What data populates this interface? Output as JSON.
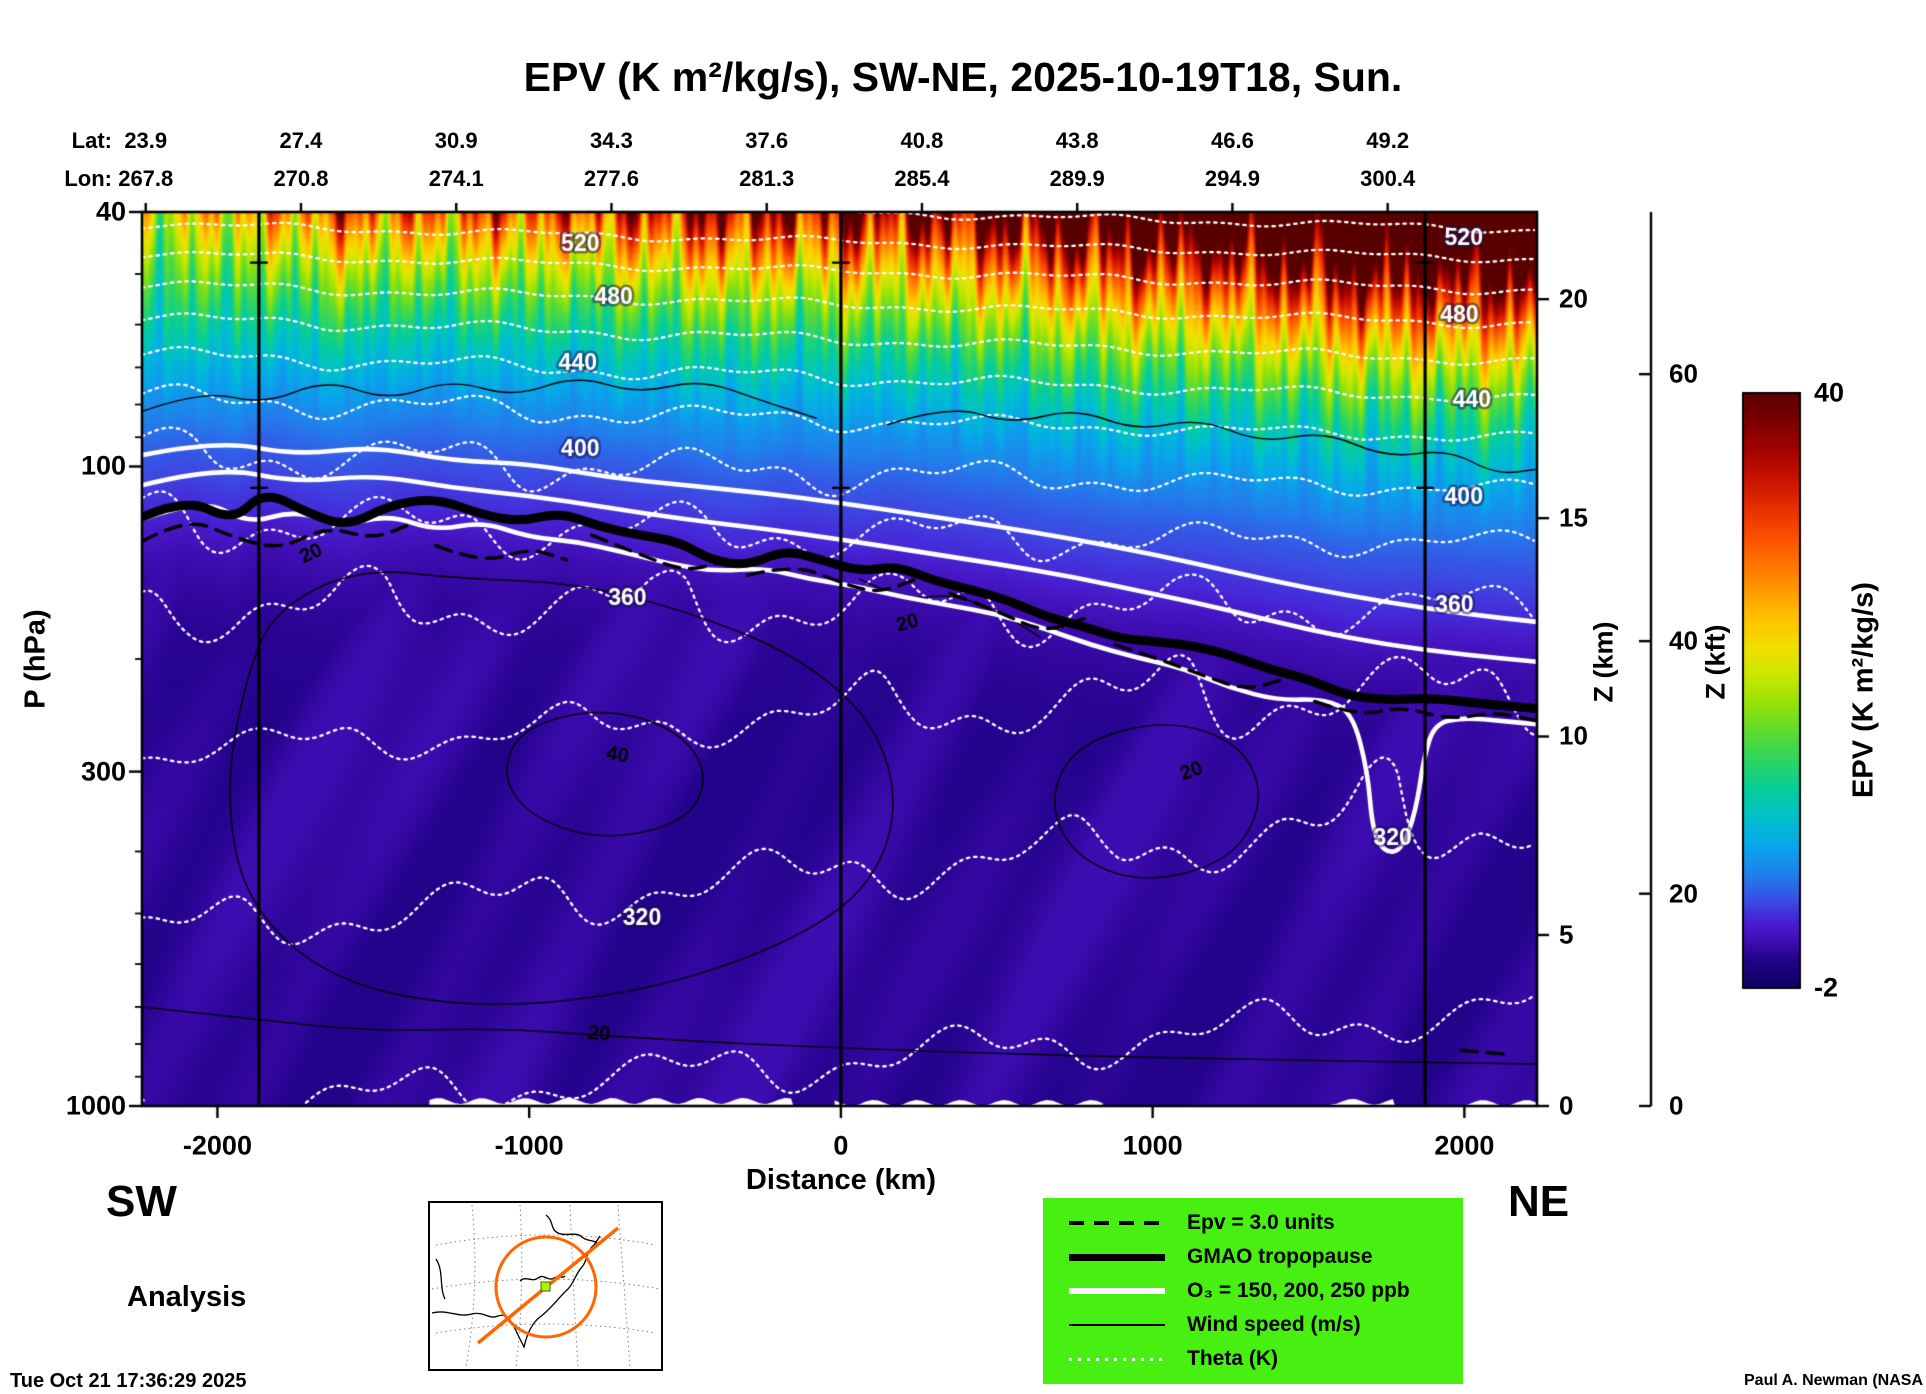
{
  "title": "EPV (K m²/kg/s), SW-NE, 2025-10-19T18, Sun.",
  "top_axis": {
    "lat_label": "Lat:",
    "lon_label": "Lon:",
    "lat": [
      "23.9",
      "27.4",
      "30.9",
      "34.3",
      "37.6",
      "40.8",
      "43.8",
      "46.6",
      "49.2"
    ],
    "lon": [
      "267.8",
      "270.8",
      "274.1",
      "277.6",
      "281.3",
      "285.4",
      "289.9",
      "294.9",
      "300.4"
    ]
  },
  "corner_labels": {
    "sw": "SW",
    "ne": "NE",
    "analysis": "Analysis"
  },
  "footer": {
    "timestamp": "Tue Oct 21 17:36:29 2025",
    "credit": "Paul A. Newman (NASA"
  },
  "legend": {
    "bg_color": "#47f011",
    "items": [
      {
        "label": "Epv = 3.0 units",
        "style": "dashed-black"
      },
      {
        "label": "GMAO tropopause",
        "style": "thick-black"
      },
      {
        "label": "O₃ = 150, 200, 250 ppb",
        "style": "thick-white"
      },
      {
        "label": "Wind speed (m/s)",
        "style": "thin-black"
      },
      {
        "label": "Theta (K)",
        "style": "dotted-white"
      }
    ]
  },
  "inset_map": {
    "track_color": "#ff6600",
    "circle_color": "#ff6600",
    "marker_color": "#bbee00"
  },
  "chart_data": {
    "type": "heatmap",
    "title": "EPV (K m²/kg/s), SW-NE, 2025-10-19T18, Sun.",
    "xlabel": "Distance (km)",
    "ylabel": "P (hPa)",
    "z_km_label": "Z (km)",
    "z_kft_label": "Z (kft)",
    "x_range_km": [
      -2242,
      2233
    ],
    "x_ticks": [
      -2000,
      -1000,
      0,
      1000,
      2000
    ],
    "p_range_hpa": [
      40,
      1000
    ],
    "p_ticks": [
      40,
      100,
      300,
      1000
    ],
    "p_minor_ticks": [
      50,
      60,
      70,
      80,
      90,
      200,
      400,
      500,
      600,
      700,
      800,
      900
    ],
    "p_scale": "log",
    "z_km_ticks": [
      0,
      5,
      10,
      15,
      20
    ],
    "z_kft_ticks": [
      0,
      20,
      40,
      60
    ],
    "lat_tick_d_km": [
      -2230,
      -1732,
      -1234,
      -736,
      -238,
      260,
      758,
      1256,
      1754
    ],
    "marker_lines_km": [
      -1867,
      0,
      1874
    ],
    "marker_tick_p": [
      48,
      108
    ],
    "colorbar": {
      "label": "EPV (K m²/kg/s)",
      "min": -2,
      "max": 40,
      "ticks": [
        {
          "label": "40",
          "value": 40
        },
        {
          "label": "-2",
          "value": -2
        }
      ]
    },
    "colormap": [
      [
        -2,
        "#0e0060"
      ],
      [
        0,
        "#23038a"
      ],
      [
        1,
        "#3a0aaa"
      ],
      [
        2,
        "#4617c4"
      ],
      [
        3,
        "#4728d8"
      ],
      [
        4,
        "#3d49e2"
      ],
      [
        5,
        "#2f64e8"
      ],
      [
        6,
        "#2181ec"
      ],
      [
        8,
        "#08a7ea"
      ],
      [
        10,
        "#00c1cc"
      ],
      [
        12,
        "#06cd9b"
      ],
      [
        14,
        "#2cd565"
      ],
      [
        16,
        "#5cdc32"
      ],
      [
        18,
        "#95e20a"
      ],
      [
        20,
        "#c9e800"
      ],
      [
        22,
        "#f0e000"
      ],
      [
        24,
        "#ffc400"
      ],
      [
        26,
        "#ff9c00"
      ],
      [
        28,
        "#ff7300"
      ],
      [
        30,
        "#fa4d00"
      ],
      [
        32,
        "#e62d00"
      ],
      [
        34,
        "#c91200"
      ],
      [
        36,
        "#a30300"
      ],
      [
        38,
        "#7d0000"
      ],
      [
        40,
        "#580000"
      ]
    ],
    "theta_levels": [
      300,
      320,
      340,
      360,
      380,
      400,
      420,
      440,
      460,
      480,
      500,
      520,
      540
    ],
    "theta_labels": [
      {
        "label": "520",
        "d": -836,
        "p": 45
      },
      {
        "label": "480",
        "d": -729,
        "p": 54.4
      },
      {
        "label": "440",
        "d": -844,
        "p": 69
      },
      {
        "label": "400",
        "d": -836,
        "p": 94
      },
      {
        "label": "360",
        "d": -685,
        "p": 161
      },
      {
        "label": "320",
        "d": -638,
        "p": 510
      },
      {
        "label": "520",
        "d": 1998,
        "p": 44
      },
      {
        "label": "480",
        "d": 1984,
        "p": 58
      },
      {
        "label": "440",
        "d": 2024,
        "p": 79
      },
      {
        "label": "400",
        "d": 1998,
        "p": 112
      },
      {
        "label": "360",
        "d": 1968,
        "p": 165
      },
      {
        "label": "320",
        "d": 1770,
        "p": 382
      }
    ],
    "wind_labels": [
      {
        "label": "20",
        "d": -1699,
        "p": 137,
        "rot": -25
      },
      {
        "label": "20",
        "d": 214,
        "p": 176,
        "rot": -15
      },
      {
        "label": "40",
        "d": -717,
        "p": 283,
        "rot": 10
      },
      {
        "label": "20",
        "d": 1125,
        "p": 300,
        "rot": -20
      },
      {
        "label": "20",
        "d": -776,
        "p": 772,
        "rot": 5
      }
    ],
    "tropopause": [
      [
        -2242,
        120
      ],
      [
        -2100,
        112
      ],
      [
        -1950,
        122
      ],
      [
        -1850,
        109
      ],
      [
        -1700,
        119
      ],
      [
        -1580,
        124
      ],
      [
        -1450,
        115
      ],
      [
        -1300,
        112
      ],
      [
        -1150,
        119
      ],
      [
        -1030,
        122
      ],
      [
        -900,
        118
      ],
      [
        -780,
        124
      ],
      [
        -650,
        128
      ],
      [
        -520,
        131
      ],
      [
        -420,
        140
      ],
      [
        -300,
        143
      ],
      [
        -180,
        135
      ],
      [
        -60,
        140
      ],
      [
        60,
        146
      ],
      [
        180,
        143
      ],
      [
        300,
        151
      ],
      [
        420,
        156
      ],
      [
        540,
        162
      ],
      [
        660,
        172
      ],
      [
        780,
        178
      ],
      [
        900,
        186
      ],
      [
        1020,
        188
      ],
      [
        1140,
        191
      ],
      [
        1260,
        198
      ],
      [
        1380,
        208
      ],
      [
        1500,
        215
      ],
      [
        1620,
        228
      ],
      [
        1750,
        232
      ],
      [
        1900,
        230
      ],
      [
        2050,
        235
      ],
      [
        2233,
        239
      ]
    ],
    "o3_lines": [
      {
        "ppb": 250,
        "points": [
          [
            -2242,
            96
          ],
          [
            -2000,
            91
          ],
          [
            -1750,
            96
          ],
          [
            -1500,
            93
          ],
          [
            -1250,
            98
          ],
          [
            -1000,
            99
          ],
          [
            -750,
            104
          ],
          [
            -500,
            107
          ],
          [
            -250,
            110
          ],
          [
            0,
            114
          ],
          [
            250,
            119
          ],
          [
            500,
            124
          ],
          [
            750,
            130
          ],
          [
            1000,
            137
          ],
          [
            1250,
            146
          ],
          [
            1500,
            155
          ],
          [
            1750,
            163
          ],
          [
            2000,
            170
          ],
          [
            2233,
            175
          ]
        ]
      },
      {
        "ppb": 200,
        "points": [
          [
            -2242,
            107
          ],
          [
            -2000,
            100
          ],
          [
            -1750,
            106
          ],
          [
            -1500,
            103
          ],
          [
            -1250,
            108
          ],
          [
            -1000,
            111
          ],
          [
            -750,
            116
          ],
          [
            -500,
            121
          ],
          [
            -250,
            125
          ],
          [
            0,
            130
          ],
          [
            250,
            136
          ],
          [
            500,
            142
          ],
          [
            750,
            149
          ],
          [
            1000,
            158
          ],
          [
            1250,
            168
          ],
          [
            1500,
            180
          ],
          [
            1750,
            190
          ],
          [
            2000,
            197
          ],
          [
            2233,
            202
          ]
        ]
      },
      {
        "ppb": 150,
        "points": [
          [
            -2242,
            121
          ],
          [
            -2050,
            112
          ],
          [
            -1900,
            123
          ],
          [
            -1750,
            117
          ],
          [
            -1600,
            124
          ],
          [
            -1450,
            119
          ],
          [
            -1300,
            126
          ],
          [
            -1150,
            122
          ],
          [
            -1000,
            129
          ],
          [
            -850,
            131
          ],
          [
            -700,
            136
          ],
          [
            -550,
            142
          ],
          [
            -400,
            146
          ],
          [
            -250,
            144
          ],
          [
            -100,
            150
          ],
          [
            50,
            154
          ],
          [
            200,
            160
          ],
          [
            350,
            165
          ],
          [
            500,
            170
          ],
          [
            650,
            179
          ],
          [
            800,
            190
          ],
          [
            950,
            199
          ],
          [
            1100,
            207
          ],
          [
            1250,
            222
          ],
          [
            1400,
            232
          ],
          [
            1550,
            231
          ],
          [
            1640,
            242
          ],
          [
            1690,
            300
          ],
          [
            1705,
            370
          ],
          [
            1745,
            402
          ],
          [
            1800,
            398
          ],
          [
            1845,
            345
          ],
          [
            1870,
            285
          ],
          [
            1905,
            252
          ],
          [
            2000,
            247
          ],
          [
            2120,
            250
          ],
          [
            2233,
            253
          ]
        ]
      }
    ],
    "epv3_segments": [
      [
        [
          -2242,
          131
        ],
        [
          -2100,
          120
        ],
        [
          -1950,
          129
        ],
        [
          -1800,
          135
        ],
        [
          -1650,
          124
        ],
        [
          -1500,
          130
        ],
        [
          -1380,
          123
        ]
      ],
      [
        [
          -1300,
          133
        ],
        [
          -1150,
          142
        ],
        [
          -1000,
          134
        ],
        [
          -880,
          140
        ]
      ],
      [
        [
          -800,
          128
        ],
        [
          -650,
          137
        ],
        [
          -500,
          146
        ],
        [
          -380,
          141
        ]
      ],
      [
        [
          -300,
          148
        ],
        [
          -150,
          142
        ],
        [
          0,
          152
        ],
        [
          120,
          158
        ],
        [
          240,
          150
        ]
      ],
      [
        [
          350,
          158
        ],
        [
          500,
          168
        ],
        [
          650,
          182
        ],
        [
          780,
          173
        ]
      ],
      [
        [
          880,
          190
        ],
        [
          1020,
          200
        ],
        [
          1160,
          212
        ],
        [
          1300,
          224
        ],
        [
          1420,
          215
        ]
      ],
      [
        [
          1520,
          233
        ],
        [
          1660,
          246
        ],
        [
          1800,
          237
        ],
        [
          1950,
          249
        ],
        [
          2100,
          242
        ],
        [
          2233,
          250
        ]
      ],
      [
        [
          1990,
          818
        ],
        [
          2140,
          830
        ]
      ]
    ],
    "wind_contours": [
      {
        "level": 20,
        "closed": false,
        "points": [
          [
            -2242,
            82
          ],
          [
            -2050,
            76
          ],
          [
            -1850,
            80
          ],
          [
            -1650,
            73
          ],
          [
            -1450,
            79
          ],
          [
            -1250,
            73
          ],
          [
            -1050,
            78
          ],
          [
            -850,
            72
          ],
          [
            -650,
            77
          ],
          [
            -450,
            73
          ],
          [
            -250,
            79
          ],
          [
            -80,
            84
          ]
        ]
      },
      {
        "level": 20,
        "closed": false,
        "points": [
          [
            150,
            86
          ],
          [
            350,
            80
          ],
          [
            550,
            86
          ],
          [
            750,
            81
          ],
          [
            950,
            88
          ],
          [
            1150,
            84
          ],
          [
            1350,
            92
          ],
          [
            1550,
            88
          ],
          [
            1750,
            97
          ],
          [
            1950,
            94
          ],
          [
            2100,
            103
          ],
          [
            2233,
            101
          ]
        ]
      },
      {
        "level": 20,
        "closed": false,
        "points": [
          [
            60,
            150
          ],
          [
            200,
            162
          ],
          [
            360,
            158
          ],
          [
            520,
            170
          ],
          [
            640,
            185
          ]
        ]
      },
      {
        "level": 20,
        "closed": true,
        "points": [
          [
            -1820,
            168
          ],
          [
            -1550,
            144
          ],
          [
            -1200,
            150
          ],
          [
            -850,
            152
          ],
          [
            -500,
            168
          ],
          [
            -150,
            196
          ],
          [
            110,
            250
          ],
          [
            190,
            345
          ],
          [
            80,
            468
          ],
          [
            -240,
            578
          ],
          [
            -690,
            672
          ],
          [
            -1190,
            705
          ],
          [
            -1640,
            638
          ],
          [
            -1915,
            478
          ],
          [
            -1975,
            320
          ],
          [
            -1910,
            215
          ]
        ]
      },
      {
        "level": 40,
        "closed": true,
        "points": [
          [
            -1020,
            255
          ],
          [
            -760,
            238
          ],
          [
            -520,
            258
          ],
          [
            -420,
            305
          ],
          [
            -500,
            362
          ],
          [
            -780,
            385
          ],
          [
            -1010,
            350
          ],
          [
            -1090,
            300
          ]
        ]
      },
      {
        "level": 20,
        "closed": true,
        "points": [
          [
            760,
            270
          ],
          [
            1050,
            248
          ],
          [
            1290,
            272
          ],
          [
            1360,
            335
          ],
          [
            1250,
            415
          ],
          [
            960,
            450
          ],
          [
            740,
            405
          ],
          [
            665,
            330
          ]
        ]
      },
      {
        "level": 20,
        "closed": false,
        "points": [
          [
            -2242,
            700
          ],
          [
            -1900,
            730
          ],
          [
            -1500,
            765
          ],
          [
            -1100,
            755
          ],
          [
            -700,
            780
          ],
          [
            -300,
            800
          ],
          [
            100,
            815
          ],
          [
            500,
            828
          ],
          [
            900,
            838
          ],
          [
            1300,
            845
          ],
          [
            1700,
            852
          ],
          [
            2100,
            858
          ],
          [
            2233,
            860
          ]
        ]
      }
    ],
    "surface_white": [
      [
        -1320,
        -150,
        982
      ],
      [
        -20,
        840,
        989
      ],
      [
        1570,
        1780,
        985
      ],
      [
        1990,
        2233,
        989
      ]
    ]
  }
}
